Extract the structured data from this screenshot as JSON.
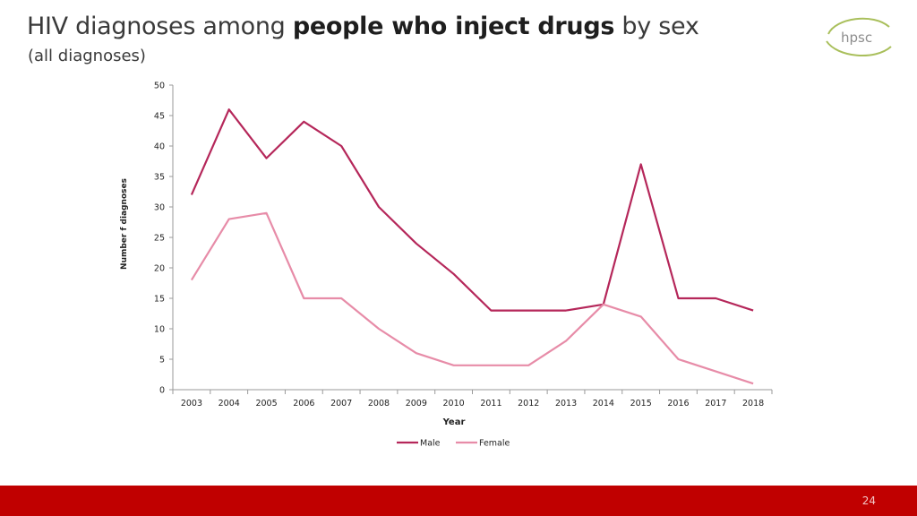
{
  "header": {
    "title_pre": "HIV diagnoses among ",
    "title_bold": "people who inject drugs",
    "title_post": " by sex",
    "subtitle": "(all diagnoses)"
  },
  "logo": {
    "text": "hpsc",
    "color": "#8fa83a"
  },
  "footer": {
    "page_number": "24",
    "color": "#c00000"
  },
  "chart_data": {
    "type": "line",
    "title": "",
    "xlabel": "Year",
    "ylabel": "Number f diagnoses",
    "categories": [
      "2003",
      "2004",
      "2005",
      "2006",
      "2007",
      "2008",
      "2009",
      "2010",
      "2011",
      "2012",
      "2013",
      "2014",
      "2015",
      "2016",
      "2017",
      "2018"
    ],
    "ylim": [
      0,
      50
    ],
    "yticks": [
      0,
      5,
      10,
      15,
      20,
      25,
      30,
      35,
      40,
      45,
      50
    ],
    "grid": false,
    "legend": "bottom-center",
    "series": [
      {
        "name": "Male",
        "color": "#b5275a",
        "values": [
          32,
          46,
          38,
          44,
          40,
          30,
          24,
          19,
          13,
          13,
          13,
          14,
          37,
          15,
          15,
          13
        ]
      },
      {
        "name": "Female",
        "color": "#e78ca8",
        "values": [
          18,
          28,
          29,
          15,
          15,
          10,
          6,
          4,
          4,
          4,
          8,
          14,
          12,
          5,
          3,
          1
        ]
      }
    ]
  }
}
